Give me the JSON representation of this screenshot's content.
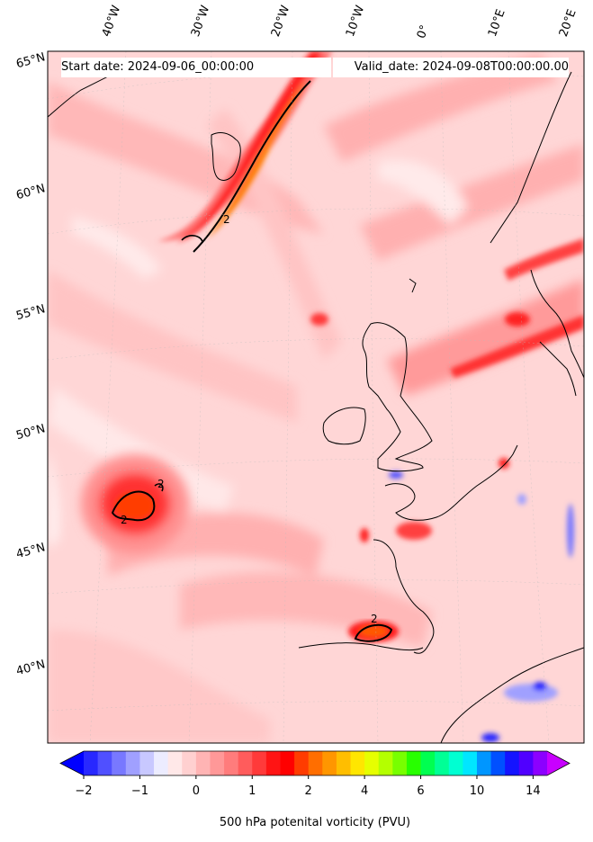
{
  "start_date": "Start date: 2024-09-06_00:00:00",
  "valid_date": "Valid_date: 2024-09-08T00:00:00.00",
  "lon_labels": [
    "40°W",
    "30°W",
    "20°W",
    "10°W",
    "0°",
    "10°E",
    "20°E"
  ],
  "lat_labels": [
    "65°N",
    "60°N",
    "55°N",
    "50°N",
    "45°N",
    "40°N"
  ],
  "contour_label": "2",
  "colorbar": {
    "label": "500 hPa potenital vorticity (PVU)",
    "tick_labels": [
      "−2",
      "−1",
      "0",
      "1",
      "2",
      "4",
      "6",
      "10",
      "14"
    ],
    "colors": [
      "#0000ff",
      "#2828ff",
      "#5050ff",
      "#7878ff",
      "#a0a0ff",
      "#c8c8ff",
      "#ececff",
      "#ffe8e8",
      "#ffd0d0",
      "#ffb4b4",
      "#ff9898",
      "#ff7c7c",
      "#ff5c5c",
      "#ff3a3a",
      "#ff1414",
      "#ff0000",
      "#ff3c00",
      "#ff6e00",
      "#ff9600",
      "#ffbe00",
      "#ffe600",
      "#e6ff00",
      "#b4ff00",
      "#78ff00",
      "#28ff00",
      "#00ff50",
      "#00ff96",
      "#00ffd2",
      "#00e6ff",
      "#0096ff",
      "#0050ff",
      "#1414ff",
      "#5000ff",
      "#8c00ff",
      "#c800ff"
    ]
  }
}
